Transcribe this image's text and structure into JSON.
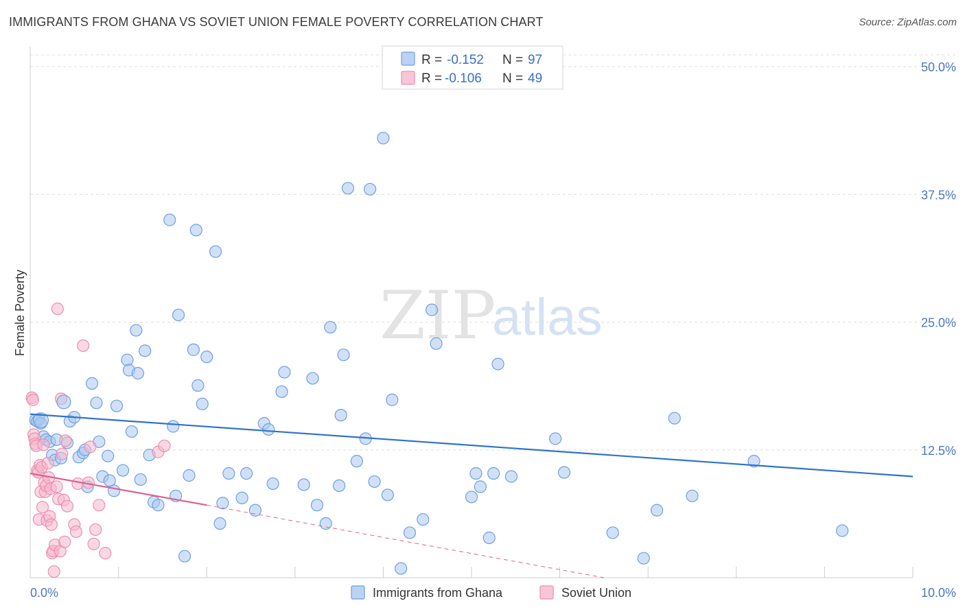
{
  "title": "IMMIGRANTS FROM GHANA VS SOVIET UNION FEMALE POVERTY CORRELATION CHART",
  "source": "Source: ZipAtlas.com",
  "watermark": {
    "zip": "ZIP",
    "atlas": "atlas"
  },
  "colors": {
    "blue_fill": "#aac8f0",
    "blue_stroke": "#6f9fe0",
    "blue_line": "#2f72cc",
    "pink_fill": "#f6b8cc",
    "pink_stroke": "#ec8fae",
    "pink_line": "#e0608e",
    "grid": "#dddddd",
    "axis_label": "#4a78c2"
  },
  "legend": {
    "rows": [
      {
        "r_label": "R =",
        "r_value": "-0.152",
        "n_label": "N =",
        "n_value": "97"
      },
      {
        "r_label": "R =",
        "r_value": "-0.106",
        "n_label": "N =",
        "n_value": "49"
      }
    ]
  },
  "bottom_legend": [
    "Immigrants from Ghana",
    "Soviet Union"
  ],
  "chart_data": {
    "type": "scatter",
    "title": "IMMIGRANTS FROM GHANA VS SOVIET UNION FEMALE POVERTY CORRELATION CHART",
    "xlabel": "",
    "ylabel": "Female Poverty",
    "xlim": [
      0,
      10
    ],
    "ylim": [
      0,
      50
    ],
    "x_tick_labels": [
      "0.0%",
      "10.0%"
    ],
    "y_ticks": [
      12.5,
      25.0,
      37.5,
      50.0
    ],
    "y_tick_labels": [
      "12.5%",
      "25.0%",
      "37.5%",
      "50.0%"
    ],
    "grid": true,
    "series": [
      {
        "name": "Immigrants from Ghana",
        "color": "#6f9fe0",
        "trend": {
          "x": [
            0,
            10
          ],
          "y": [
            16.0,
            9.9
          ],
          "dashed_extension": false
        },
        "points": [
          [
            0.06,
            15.4
          ],
          [
            0.08,
            15.3
          ],
          [
            0.1,
            15.5
          ],
          [
            0.12,
            15.1
          ],
          [
            0.15,
            13.8
          ],
          [
            0.18,
            13.5
          ],
          [
            0.22,
            13.3
          ],
          [
            0.25,
            12.0
          ],
          [
            0.28,
            11.5
          ],
          [
            0.3,
            13.5
          ],
          [
            0.35,
            11.7
          ],
          [
            0.42,
            13.2
          ],
          [
            0.45,
            15.3
          ],
          [
            0.5,
            15.7
          ],
          [
            0.55,
            11.8
          ],
          [
            0.6,
            12.2
          ],
          [
            0.62,
            12.5
          ],
          [
            0.65,
            8.9
          ],
          [
            0.7,
            19.0
          ],
          [
            0.75,
            17.1
          ],
          [
            0.78,
            13.3
          ],
          [
            0.82,
            9.9
          ],
          [
            0.88,
            11.9
          ],
          [
            0.9,
            9.5
          ],
          [
            0.95,
            8.5
          ],
          [
            0.98,
            16.8
          ],
          [
            1.05,
            10.5
          ],
          [
            1.1,
            21.3
          ],
          [
            1.12,
            20.3
          ],
          [
            1.15,
            14.3
          ],
          [
            1.2,
            24.2
          ],
          [
            1.22,
            20.0
          ],
          [
            1.25,
            9.6
          ],
          [
            1.3,
            22.2
          ],
          [
            1.35,
            12.0
          ],
          [
            1.4,
            7.4
          ],
          [
            1.45,
            7.1
          ],
          [
            1.58,
            35.0
          ],
          [
            1.62,
            14.8
          ],
          [
            1.65,
            8.0
          ],
          [
            1.68,
            25.7
          ],
          [
            1.75,
            2.1
          ],
          [
            1.8,
            10.0
          ],
          [
            1.85,
            22.3
          ],
          [
            1.88,
            34.0
          ],
          [
            1.9,
            18.8
          ],
          [
            1.95,
            17.0
          ],
          [
            2.0,
            21.6
          ],
          [
            2.1,
            31.9
          ],
          [
            2.15,
            5.3
          ],
          [
            2.18,
            7.3
          ],
          [
            2.25,
            10.2
          ],
          [
            2.4,
            7.8
          ],
          [
            2.45,
            10.2
          ],
          [
            2.55,
            6.6
          ],
          [
            2.65,
            15.1
          ],
          [
            2.7,
            14.5
          ],
          [
            2.75,
            9.2
          ],
          [
            2.85,
            18.2
          ],
          [
            2.88,
            20.1
          ],
          [
            3.1,
            9.1
          ],
          [
            3.2,
            19.5
          ],
          [
            3.25,
            7.1
          ],
          [
            3.35,
            5.3
          ],
          [
            3.4,
            24.5
          ],
          [
            3.5,
            9.0
          ],
          [
            3.52,
            15.9
          ],
          [
            3.55,
            21.8
          ],
          [
            3.6,
            38.1
          ],
          [
            3.7,
            11.4
          ],
          [
            3.8,
            13.6
          ],
          [
            3.85,
            38.0
          ],
          [
            3.9,
            9.4
          ],
          [
            4.0,
            43.0
          ],
          [
            4.05,
            8.1
          ],
          [
            4.1,
            17.4
          ],
          [
            4.2,
            0.9
          ],
          [
            4.3,
            4.4
          ],
          [
            4.45,
            5.7
          ],
          [
            4.55,
            26.2
          ],
          [
            4.6,
            22.9
          ],
          [
            5.0,
            7.9
          ],
          [
            5.05,
            10.2
          ],
          [
            5.1,
            8.9
          ],
          [
            5.2,
            3.9
          ],
          [
            5.25,
            10.2
          ],
          [
            5.3,
            20.9
          ],
          [
            5.45,
            9.9
          ],
          [
            5.95,
            13.6
          ],
          [
            6.05,
            10.3
          ],
          [
            6.6,
            4.4
          ],
          [
            6.95,
            1.9
          ],
          [
            7.1,
            6.6
          ],
          [
            7.3,
            15.6
          ],
          [
            7.5,
            8.0
          ],
          [
            8.2,
            11.4
          ],
          [
            9.2,
            4.6
          ]
        ]
      },
      {
        "name": "Soviet Union",
        "color": "#ec8fae",
        "trend": {
          "x": [
            0,
            2.0
          ],
          "y": [
            10.2,
            7.1
          ],
          "dashed_extension": {
            "x": [
              2.0,
              6.5
            ],
            "y": [
              7.1,
              0.0
            ]
          }
        },
        "points": [
          [
            0.02,
            17.6
          ],
          [
            0.03,
            17.4
          ],
          [
            0.04,
            14.0
          ],
          [
            0.05,
            13.6
          ],
          [
            0.06,
            13.1
          ],
          [
            0.07,
            12.9
          ],
          [
            0.08,
            10.5
          ],
          [
            0.09,
            10.3
          ],
          [
            0.1,
            5.7
          ],
          [
            0.11,
            11.0
          ],
          [
            0.12,
            8.4
          ],
          [
            0.13,
            10.8
          ],
          [
            0.14,
            6.9
          ],
          [
            0.15,
            13.0
          ],
          [
            0.16,
            9.3
          ],
          [
            0.17,
            8.4
          ],
          [
            0.18,
            9.0
          ],
          [
            0.19,
            5.6
          ],
          [
            0.2,
            11.2
          ],
          [
            0.21,
            9.8
          ],
          [
            0.22,
            6.0
          ],
          [
            0.23,
            8.7
          ],
          [
            0.24,
            5.2
          ],
          [
            0.25,
            2.4
          ],
          [
            0.26,
            2.6
          ],
          [
            0.27,
            0.6
          ],
          [
            0.28,
            3.2
          ],
          [
            0.3,
            8.9
          ],
          [
            0.31,
            26.3
          ],
          [
            0.32,
            7.7
          ],
          [
            0.34,
            2.6
          ],
          [
            0.35,
            17.5
          ],
          [
            0.36,
            12.1
          ],
          [
            0.38,
            7.6
          ],
          [
            0.39,
            3.5
          ],
          [
            0.4,
            13.4
          ],
          [
            0.42,
            7.0
          ],
          [
            0.5,
            5.2
          ],
          [
            0.52,
            4.5
          ],
          [
            0.54,
            9.2
          ],
          [
            0.6,
            22.7
          ],
          [
            0.66,
            9.3
          ],
          [
            0.68,
            12.8
          ],
          [
            0.72,
            3.3
          ],
          [
            0.74,
            4.7
          ],
          [
            0.78,
            7.1
          ],
          [
            0.85,
            2.4
          ],
          [
            1.45,
            12.3
          ],
          [
            1.52,
            12.9
          ]
        ]
      }
    ]
  }
}
